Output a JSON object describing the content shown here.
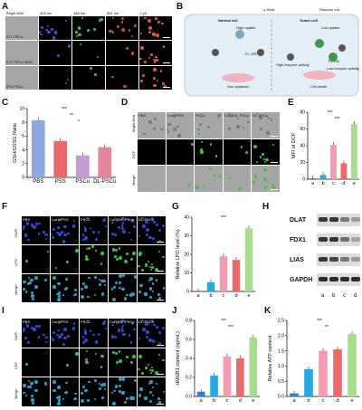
{
  "panels": {
    "A": {
      "label": "A",
      "cols": [
        "Bright field",
        "405 nm",
        "488 nm",
        "561 nm",
        "Cy5"
      ],
      "rows": [
        [
          "4T1",
          "PSCu"
        ],
        [
          "4T1",
          "PSCu+BSO"
        ],
        [
          "3T3",
          "PSCu"
        ]
      ]
    },
    "B": {
      "label": "B",
      "normal_title": "Normal cell",
      "tumor_title": "Tumor cell",
      "helix": "α-Helix",
      "random_coil": "Random coil",
      "high_uptake": "High uptake",
      "low_uptake": "Low uptake",
      "fl_off": "FL OFF",
      "fl_on": "FL ON",
      "high_enzyme": "High enzyme activity",
      "low_enzyme": "Low enzyme activity",
      "non_cytotoxic": "Non-cytotoxic",
      "cell_death": "Cell death"
    },
    "C": {
      "label": "C",
      "ylabel": "GSH/GSSG Ratio"
    },
    "D": {
      "label": "D",
      "cols": [
        "PBS",
        "Cur@PSS",
        "PSCu",
        "Cur@DL-PSCu",
        "DL-PSCu"
      ],
      "rows": [
        "Bright field",
        "DCF",
        "Merge"
      ]
    },
    "E": {
      "label": "E",
      "ylabel": "MFI of DCF"
    },
    "F": {
      "label": "F",
      "cols": [
        "PBS",
        "Cur@PSS",
        "PSCu",
        "Cur@DL-PSCu",
        "DL-PSCu"
      ],
      "rows": [
        "DAPI",
        "LPO",
        "Merge"
      ]
    },
    "G": {
      "label": "G",
      "ylabel": "Relative LPO level (%)"
    },
    "H": {
      "label": "H",
      "rows": [
        "DLAT",
        "FDX1",
        "LIAS",
        "GAPDH"
      ],
      "lanes": [
        "a",
        "b",
        "c",
        "d"
      ]
    },
    "I": {
      "label": "I",
      "cols": [
        "PBS",
        "Cur@PSS",
        "PSCu",
        "Cur@DL-PSCu",
        "DL-PSCu"
      ],
      "rows": [
        "DAPI",
        "CRT",
        "Merge"
      ]
    },
    "J": {
      "label": "J",
      "ylabel": "HMGB1 content (ng/mL)"
    },
    "K": {
      "label": "K",
      "ylabel": "Relative ATP content"
    }
  },
  "chart_data": [
    {
      "type": "bar",
      "panel": "C",
      "categories": [
        "PBS",
        "PSS",
        "PSCu",
        "DL-PSCu"
      ],
      "values": [
        8.3,
        5.3,
        3.2,
        4.4
      ],
      "colors": [
        "#8ea8e0",
        "#e9676a",
        "#c39bd3",
        "#e2879a"
      ],
      "ylabel": "GSH/GSSG Ratio",
      "ylim": [
        0,
        10
      ],
      "yticks": [
        "0",
        "2",
        "4",
        "6",
        "8",
        "10"
      ],
      "sig": [
        "***",
        "**",
        "*"
      ]
    },
    {
      "type": "bar",
      "panel": "E",
      "categories": [
        "a",
        "b",
        "c",
        "d",
        "e"
      ],
      "values": [
        1,
        5,
        41,
        19,
        66
      ],
      "colors": [
        "#2f7fd8",
        "#27a8e0",
        "#f29bb3",
        "#e96a6a",
        "#a9dc8f"
      ],
      "ylabel": "MFI of DCF",
      "ylim": [
        0,
        80
      ],
      "yticks": [
        "0",
        "20",
        "40",
        "60",
        "80"
      ],
      "sig": [
        "***",
        "***"
      ]
    },
    {
      "type": "bar",
      "panel": "G",
      "categories": [
        "a",
        "b",
        "c",
        "d",
        "e"
      ],
      "values": [
        0,
        5,
        19,
        17,
        34
      ],
      "colors": [
        "#2f7fd8",
        "#27a8e0",
        "#f29bb3",
        "#e96a6a",
        "#a9dc8f"
      ],
      "ylabel": "Relative LPO level (%)",
      "ylim": [
        0,
        40
      ],
      "yticks": [
        "0",
        "10",
        "20",
        "30",
        "40"
      ],
      "sig": [
        "***"
      ]
    },
    {
      "type": "bar",
      "panel": "J",
      "categories": [
        "a",
        "b",
        "c",
        "d",
        "e"
      ],
      "values": [
        0.05,
        0.22,
        0.42,
        0.4,
        0.62
      ],
      "colors": [
        "#2f7fd8",
        "#27a8e0",
        "#f29bb3",
        "#e96a6a",
        "#a9dc8f"
      ],
      "ylabel": "HMGB1 content (ng/mL)",
      "ylim": [
        0,
        0.8
      ],
      "yticks": [
        "0.0",
        "0.2",
        "0.4",
        "0.6",
        "0.8"
      ],
      "sig": [
        "***",
        "***"
      ]
    },
    {
      "type": "bar",
      "panel": "K",
      "categories": [
        "a",
        "b",
        "c",
        "d",
        "e"
      ],
      "values": [
        0.1,
        0.9,
        1.5,
        1.55,
        2.05
      ],
      "colors": [
        "#2f7fd8",
        "#27a8e0",
        "#f29bb3",
        "#e96a6a",
        "#a9dc8f"
      ],
      "ylabel": "Relative ATP content",
      "ylim": [
        0,
        2.5
      ],
      "yticks": [
        "0.0",
        "0.5",
        "1.0",
        "1.5",
        "2.0",
        "2.5"
      ],
      "sig": [
        "***",
        "**"
      ]
    }
  ]
}
